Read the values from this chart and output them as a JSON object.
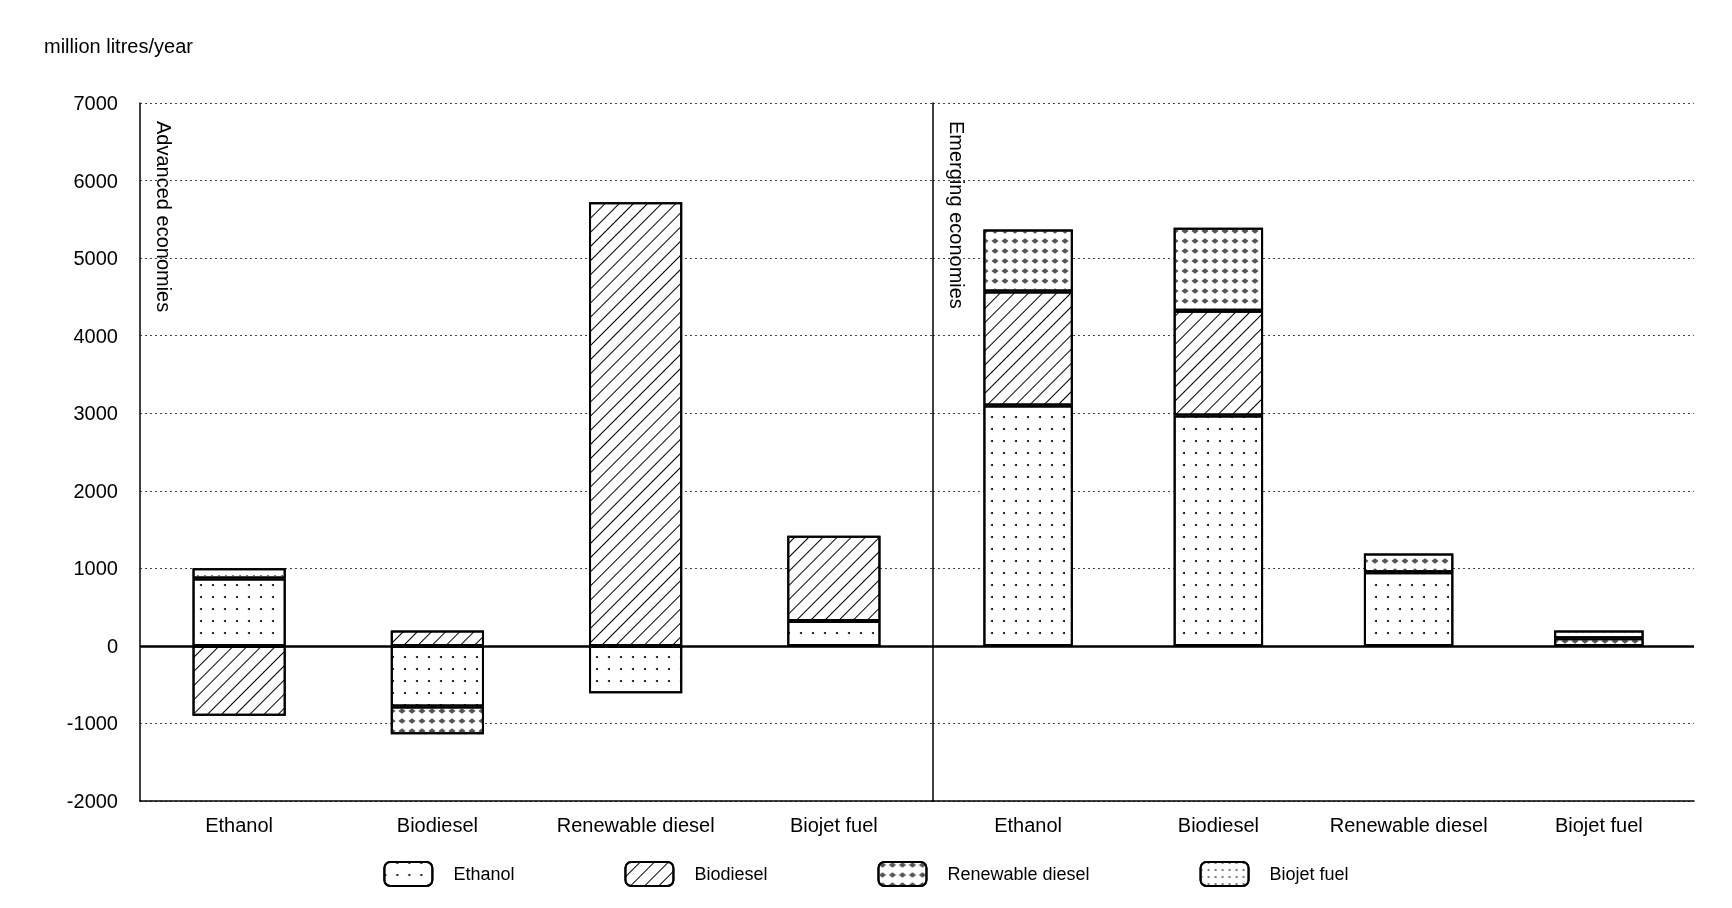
{
  "chart_data": [
    {
      "type": "bar",
      "title": "Advanced economies",
      "ylabel": "million litres/year",
      "stacked": true,
      "categories": [
        "Ethanol",
        "Biodiesel",
        "Renewable diesel",
        "Biojet fuel"
      ],
      "series": [
        {
          "name": "Ethanol",
          "color": "#ffffff",
          "values": [
            870,
            -780,
            -610,
            320
          ]
        },
        {
          "name": "Biodiesel",
          "color": "#ffffff",
          "values": [
            -900,
            200,
            5720,
            1100
          ]
        },
        {
          "name": "Renewable diesel",
          "color": "#ffffff",
          "values": [
            null,
            -360,
            null,
            null
          ]
        },
        {
          "name": "Biojet fuel",
          "color": "#ffffff",
          "values": [
            130,
            null,
            null,
            null
          ]
        }
      ],
      "ylim": [
        -2000,
        7000
      ],
      "yticks": [
        -2000,
        -1000,
        0,
        1000,
        2000,
        3000,
        4000,
        5000,
        6000,
        7000
      ],
      "grid": "y",
      "legend": "bottom",
      "ref_lines": [
        {
          "axis": "y",
          "value": 0
        }
      ]
    },
    {
      "type": "bar",
      "title": "Emerging economies",
      "stacked": true,
      "categories": [
        "Ethanol",
        "Biodiesel",
        "Renewable diesel",
        "Biojet fuel"
      ],
      "series": [
        {
          "color": "#ffffff",
          "values": [
            3100,
            2970,
            950,
            null
          ]
        },
        {
          "color": "#ffffff",
          "values": [
            1470,
            1350,
            null,
            null
          ]
        },
        {
          "color": "#ffffff",
          "values": [
            800,
            1070,
            240,
            100
          ]
        },
        {
          "color": "#ffffff",
          "values": [
            null,
            null,
            null,
            100
          ]
        }
      ],
      "ylim": [
        -2000,
        7000
      ],
      "yticks": [
        -2000,
        -1000,
        0,
        1000,
        2000,
        3000,
        4000,
        5000,
        6000,
        7000
      ],
      "grid": "y",
      "tick_labels": "x",
      "ref_lines": [
        {
          "axis": "y",
          "value": 0
        }
      ]
    }
  ]
}
